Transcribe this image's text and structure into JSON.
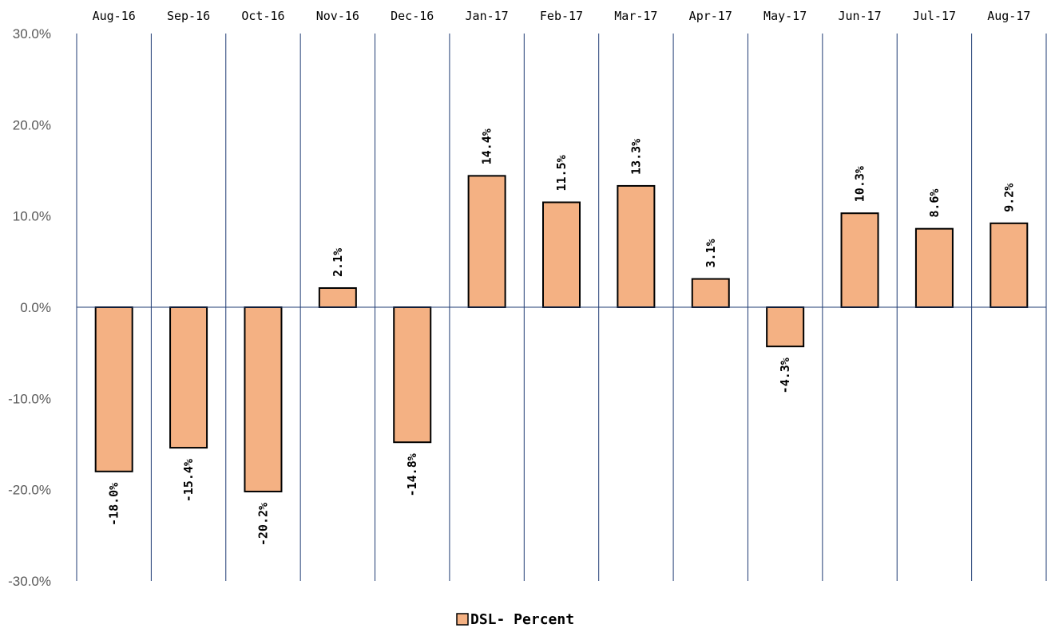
{
  "chart_data": {
    "type": "bar",
    "title": "",
    "xlabel": "",
    "ylabel": "",
    "categories": [
      "Aug-16",
      "Sep-16",
      "Oct-16",
      "Nov-16",
      "Dec-16",
      "Jan-17",
      "Feb-17",
      "Mar-17",
      "Apr-17",
      "May-17",
      "Jun-17",
      "Jul-17",
      "Aug-17"
    ],
    "series": [
      {
        "name": "DSL- Percent",
        "values": [
          -18.0,
          -15.4,
          -20.2,
          2.1,
          -14.8,
          14.4,
          11.5,
          13.3,
          3.1,
          -4.3,
          10.3,
          8.6,
          9.2
        ],
        "labels": [
          "-18.0%",
          "-15.4%",
          "-20.2%",
          "2.1%",
          "-14.8%",
          "14.4%",
          "11.5%",
          "13.3%",
          "3.1%",
          "-4.3%",
          "10.3%",
          "8.6%",
          "9.2%"
        ]
      }
    ],
    "ylim": [
      -30,
      30
    ],
    "yticks": [
      30,
      20,
      10,
      0,
      -10,
      -20,
      -30
    ],
    "ytick_labels": [
      "30.0%",
      "20.0%",
      "10.0%",
      "0.0%",
      "-10.0%",
      "-20.0%",
      "-30.0%"
    ],
    "category_axis_position": "top",
    "grid": "vertical",
    "legend_position": "bottom",
    "colors": {
      "bar_fill": "#F4B183",
      "bar_stroke": "#000000",
      "grid": "#1F3B73",
      "zero_line": "#1F3B73"
    }
  }
}
